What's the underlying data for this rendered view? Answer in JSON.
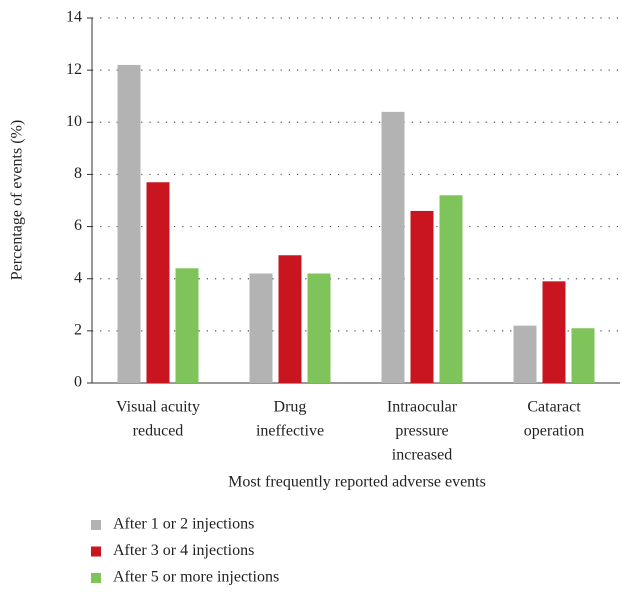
{
  "chart_data": {
    "type": "bar",
    "x_label": "Most frequently reported adverse events",
    "y_label": "Percentage of events (%)",
    "categories": [
      [
        "Visual acuity",
        "reduced"
      ],
      [
        "Drug",
        "ineffective"
      ],
      [
        "Intraocular",
        "pressure",
        "increased"
      ],
      [
        "Cataract",
        "operation"
      ]
    ],
    "series": [
      {
        "name": "After 1 or 2 injections",
        "color": "#b3b3b3",
        "values": [
          12.2,
          4.2,
          10.4,
          2.2
        ]
      },
      {
        "name": "After 3 or 4 injections",
        "color": "#c8151f",
        "values": [
          7.7,
          4.9,
          6.6,
          3.9
        ]
      },
      {
        "name": "After 5 or more injections",
        "color": "#7fc45a",
        "values": [
          4.4,
          4.2,
          7.2,
          2.1
        ]
      }
    ],
    "ylim": [
      0,
      14
    ],
    "yticks": [
      0,
      2,
      4,
      6,
      8,
      10,
      12,
      14
    ],
    "grid": true
  }
}
